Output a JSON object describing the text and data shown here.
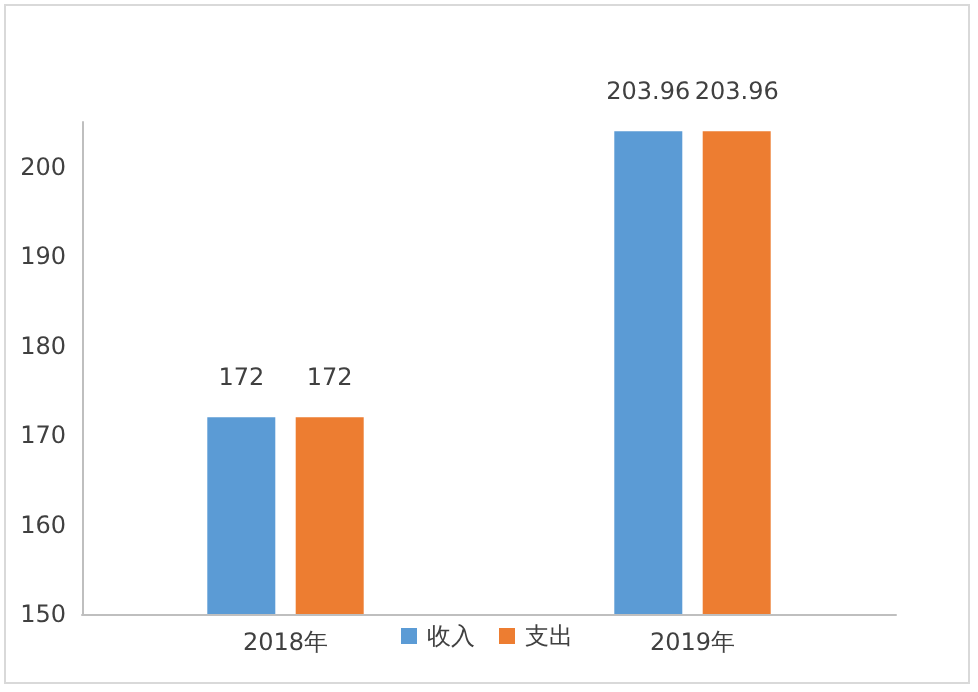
{
  "chart_data": {
    "type": "bar",
    "categories": [
      "2018年",
      "2019年"
    ],
    "series": [
      {
        "name": "收入",
        "color": "#5b9bd5",
        "values": [
          172,
          203.96
        ]
      },
      {
        "name": "支出",
        "color": "#ed7d31",
        "values": [
          172,
          203.96
        ]
      }
    ],
    "ylim": [
      150,
      205
    ],
    "yticks": [
      150,
      160,
      170,
      180,
      190,
      200
    ],
    "grid": false,
    "legend": "bottom",
    "data_labels": true
  }
}
